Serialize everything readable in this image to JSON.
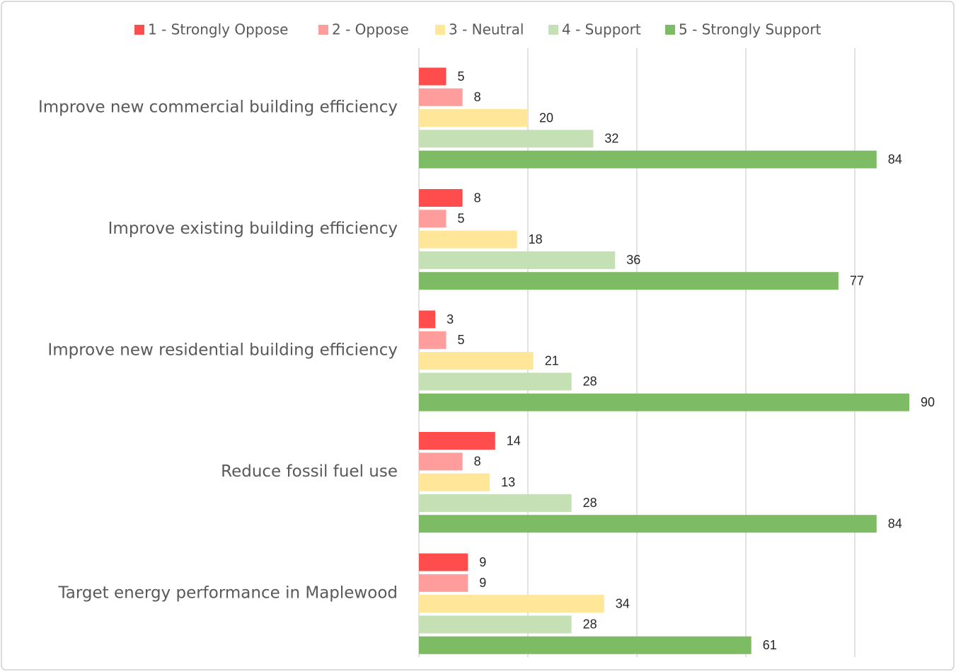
{
  "chart_data": {
    "type": "hbar",
    "categories": [
      "Improve new commercial building efficiency",
      "Improve existing building efficiency",
      "Improve new residential building efficiency",
      "Reduce fossil fuel use",
      "Target energy performance in Maplewood"
    ],
    "series": [
      {
        "name": "1 - Strongly Oppose",
        "color": "#ff4d4d",
        "values": [
          5,
          8,
          3,
          14,
          9
        ]
      },
      {
        "name": "2 - Oppose",
        "color": "#ff9c9c",
        "values": [
          8,
          5,
          5,
          8,
          9
        ]
      },
      {
        "name": "3 - Neutral",
        "color": "#ffe699",
        "values": [
          20,
          18,
          21,
          13,
          34
        ]
      },
      {
        "name": "4 - Support",
        "color": "#c5e0b4",
        "values": [
          32,
          36,
          28,
          28,
          28
        ]
      },
      {
        "name": "5 - Strongly Support",
        "color": "#7dbb65",
        "values": [
          84,
          77,
          90,
          84,
          61
        ]
      }
    ],
    "xlim": [
      0,
      95
    ],
    "xticks": [
      0,
      20,
      40,
      60,
      80
    ],
    "grid": true,
    "legend": "top"
  }
}
